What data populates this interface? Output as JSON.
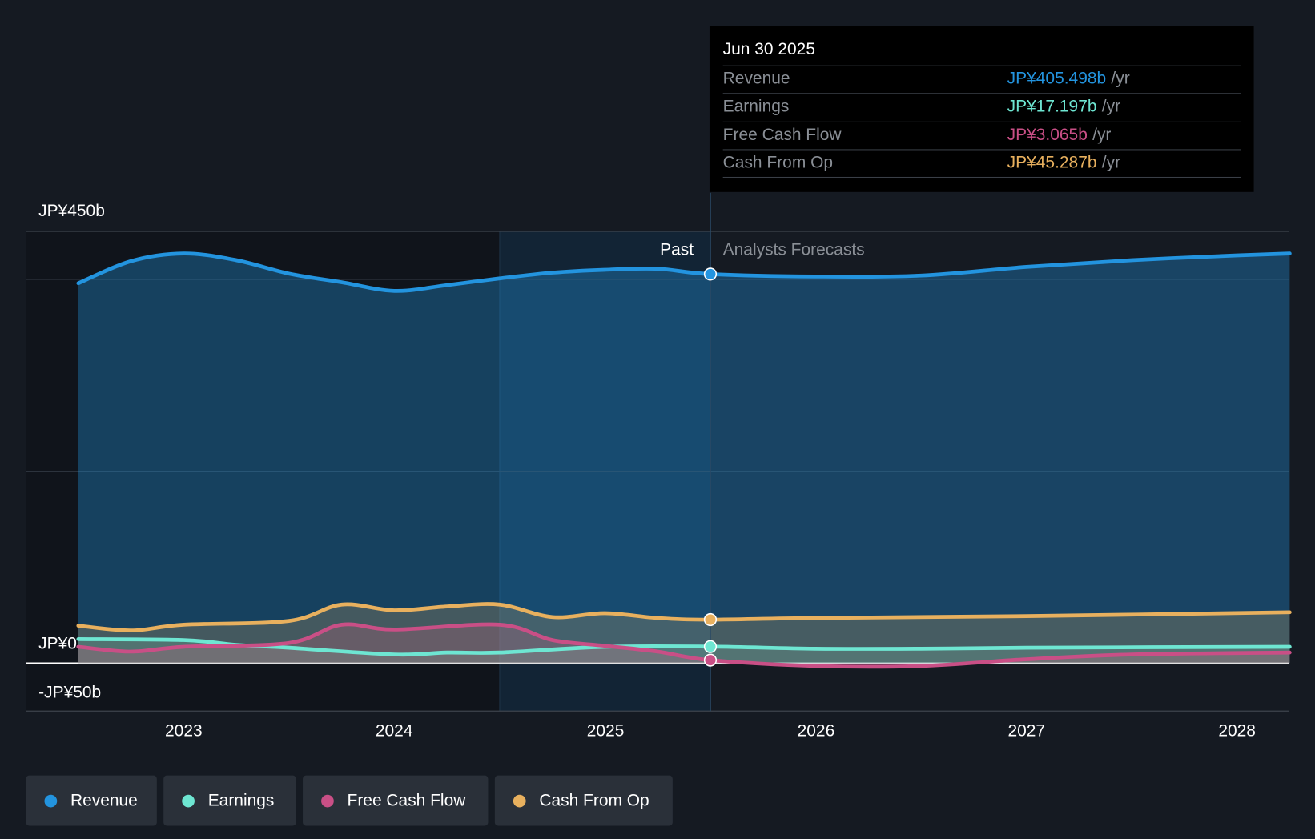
{
  "tooltip": {
    "date": "Jun 30 2025",
    "rows": [
      {
        "label": "Revenue",
        "value": "JP¥405.498b",
        "unit": "/yr",
        "color": "#2394df"
      },
      {
        "label": "Earnings",
        "value": "JP¥17.197b",
        "unit": "/yr",
        "color": "#6ee6d2"
      },
      {
        "label": "Free Cash Flow",
        "value": "JP¥3.065b",
        "unit": "/yr",
        "color": "#c94f86"
      },
      {
        "label": "Cash From Op",
        "value": "JP¥45.287b",
        "unit": "/yr",
        "color": "#e8b05e"
      }
    ]
  },
  "labels": {
    "past": "Past",
    "forecast": "Analysts Forecasts"
  },
  "legend": [
    {
      "label": "Revenue",
      "color": "#2394df"
    },
    {
      "label": "Earnings",
      "color": "#6ee6d2"
    },
    {
      "label": "Free Cash Flow",
      "color": "#c94f86"
    },
    {
      "label": "Cash From Op",
      "color": "#e8b05e"
    }
  ],
  "chart_data": {
    "type": "line",
    "title": "",
    "xlabel": "",
    "ylabel": "",
    "ylim": [
      -50,
      450
    ],
    "xlim": [
      2022.25,
      2028.25
    ],
    "y_tick_labels": [
      "JP¥450b",
      "JP¥0",
      "-JP¥50b"
    ],
    "y_ticks": [
      450,
      0,
      -50
    ],
    "gridlines": [
      450,
      400,
      200,
      0,
      -50
    ],
    "x_ticks": [
      2023,
      2024,
      2025,
      2026,
      2027,
      2028
    ],
    "x_tick_labels": [
      "2023",
      "2024",
      "2025",
      "2026",
      "2027",
      "2028"
    ],
    "past_end": 2025.5,
    "highlight_start": 2024.5,
    "series": [
      {
        "name": "Revenue",
        "color": "#2394df",
        "x": [
          2022.5,
          2022.75,
          2023,
          2023.25,
          2023.5,
          2023.75,
          2024,
          2024.25,
          2024.5,
          2024.75,
          2025,
          2025.25,
          2025.5,
          2026,
          2026.5,
          2027,
          2027.5,
          2028,
          2028.25
        ],
        "y": [
          396,
          419,
          427,
          420,
          406,
          397,
          388,
          394,
          401,
          407,
          410,
          411,
          405.5,
          403,
          404,
          413,
          420,
          425,
          427
        ]
      },
      {
        "name": "Earnings",
        "color": "#6ee6d2",
        "x": [
          2022.5,
          2023,
          2023.25,
          2023.5,
          2024,
          2024.25,
          2024.5,
          2025,
          2025.5,
          2026,
          2026.5,
          2027,
          2028.25
        ],
        "y": [
          25,
          24,
          19,
          16,
          9,
          11,
          11,
          17,
          17.2,
          15,
          15,
          16,
          17
        ]
      },
      {
        "name": "Free Cash Flow",
        "color": "#c94f86",
        "x": [
          2022.5,
          2022.75,
          2023,
          2023.5,
          2023.75,
          2024,
          2024.5,
          2024.75,
          2025,
          2025.25,
          2025.5,
          2026,
          2026.5,
          2027,
          2027.5,
          2028.25
        ],
        "y": [
          17,
          12,
          17,
          21,
          40,
          35,
          40,
          24,
          18,
          12,
          3.1,
          -3,
          -3,
          4,
          9,
          11
        ]
      },
      {
        "name": "Cash From Op",
        "color": "#e8b05e",
        "x": [
          2022.5,
          2022.75,
          2023,
          2023.5,
          2023.75,
          2024,
          2024.25,
          2024.5,
          2024.75,
          2025,
          2025.25,
          2025.5,
          2026,
          2027,
          2028.25
        ],
        "y": [
          39,
          34,
          40,
          44,
          61,
          55,
          59,
          61,
          48,
          52,
          47,
          45.3,
          47,
          49,
          53
        ]
      }
    ]
  }
}
